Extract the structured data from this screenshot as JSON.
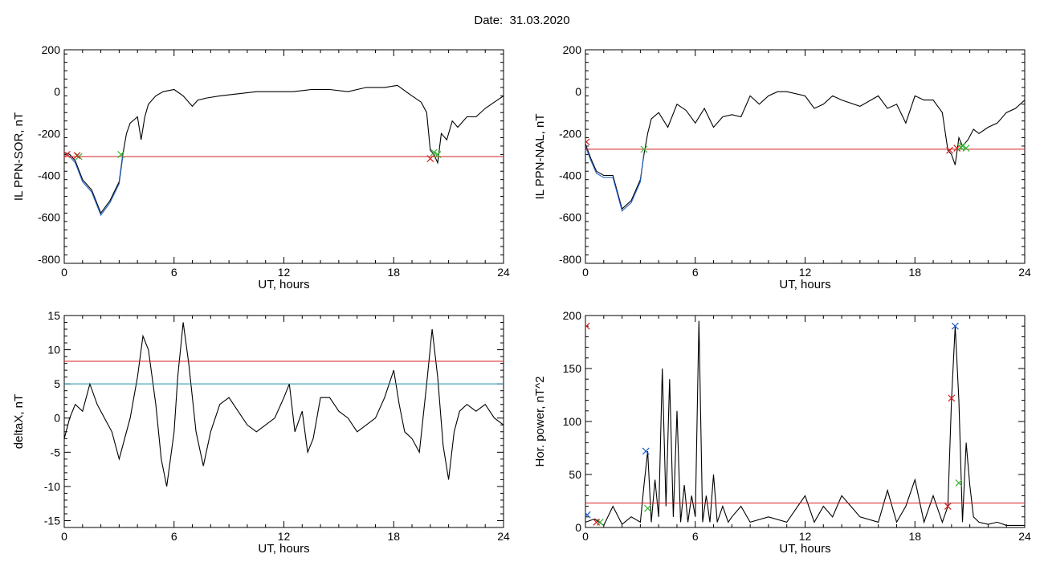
{
  "figure": {
    "title": "Date:  31.03.2020"
  },
  "chart_data": [
    {
      "type": "line",
      "ylabel": "IL PPN-SOR, nT",
      "xlabel": "UT, hours",
      "xlim": [
        0,
        24
      ],
      "ylim": [
        -820,
        200
      ],
      "xticks": [
        0,
        6,
        12,
        18,
        24
      ],
      "yticks": [
        -800,
        -600,
        -400,
        -200,
        0,
        200
      ],
      "threshold": -310,
      "series": [
        {
          "color": "#000000",
          "x": [
            0,
            0.3,
            0.6,
            1.0,
            1.5,
            2.0,
            2.5,
            3.0,
            3.2,
            3.4,
            3.6,
            4.0,
            4.2,
            4.4,
            4.6,
            5.0,
            5.4,
            6.0,
            6.5,
            7.0,
            7.3,
            7.8,
            8.5,
            9.5,
            10.5,
            11.5,
            12.5,
            13.5,
            14.5,
            15.5,
            16.5,
            17.5,
            18.2,
            19.0,
            19.5,
            19.8,
            20.0,
            20.2,
            20.4,
            20.6,
            20.9,
            21.2,
            21.5,
            22.0,
            22.5,
            23.0,
            23.5,
            24.0
          ],
          "y": [
            -290,
            -300,
            -330,
            -420,
            -470,
            -580,
            -520,
            -430,
            -300,
            -200,
            -150,
            -120,
            -230,
            -120,
            -60,
            -20,
            0,
            10,
            -20,
            -70,
            -40,
            -30,
            -20,
            -10,
            0,
            0,
            0,
            10,
            10,
            0,
            20,
            20,
            30,
            -20,
            -50,
            -100,
            -280,
            -300,
            -340,
            -200,
            -230,
            -140,
            -170,
            -120,
            -120,
            -80,
            -50,
            -20
          ]
        },
        {
          "color": "#1f5fc8",
          "x": [
            0,
            0.3,
            0.6,
            1.0,
            1.5,
            2.0,
            2.5,
            3.0,
            3.2
          ],
          "y": [
            -290,
            -310,
            -340,
            -430,
            -480,
            -590,
            -530,
            -440,
            -310
          ]
        }
      ],
      "markers": [
        {
          "x": 0.15,
          "y": -300,
          "color": "#d22020"
        },
        {
          "x": 0.8,
          "y": -310,
          "color": "#2fb830"
        },
        {
          "x": 0.7,
          "y": -305,
          "color": "#d22020"
        },
        {
          "x": 3.1,
          "y": -300,
          "color": "#2fb830"
        },
        {
          "x": 20.0,
          "y": -320,
          "color": "#d22020"
        },
        {
          "x": 20.2,
          "y": -290,
          "color": "#2fb830"
        },
        {
          "x": 20.4,
          "y": -300,
          "color": "#2fb830"
        }
      ]
    },
    {
      "type": "line",
      "ylabel": "IL PPN-NAL, nT",
      "xlabel": "UT, hours",
      "xlim": [
        0,
        24
      ],
      "ylim": [
        -820,
        200
      ],
      "xticks": [
        0,
        6,
        12,
        18,
        24
      ],
      "yticks": [
        -800,
        -600,
        -400,
        -200,
        0,
        200
      ],
      "threshold": -275,
      "series": [
        {
          "color": "#000000",
          "x": [
            0,
            0.3,
            0.6,
            1.0,
            1.5,
            2.0,
            2.5,
            3.0,
            3.2,
            3.4,
            3.6,
            4.0,
            4.5,
            5.0,
            5.5,
            6.0,
            6.5,
            7.0,
            7.5,
            8.0,
            8.5,
            9.0,
            9.5,
            10.0,
            10.5,
            11.0,
            12.0,
            12.5,
            13.0,
            13.5,
            14.0,
            15.0,
            16.0,
            16.5,
            17.0,
            17.5,
            18.0,
            18.5,
            19.0,
            19.5,
            19.8,
            20.0,
            20.2,
            20.4,
            20.6,
            20.9,
            21.2,
            21.5,
            22.0,
            22.5,
            23.0,
            23.5,
            24.0
          ],
          "y": [
            -250,
            -320,
            -380,
            -400,
            -400,
            -560,
            -520,
            -420,
            -300,
            -200,
            -130,
            -100,
            -170,
            -60,
            -90,
            -150,
            -80,
            -170,
            -120,
            -110,
            -120,
            -20,
            -60,
            -20,
            0,
            0,
            -20,
            -80,
            -60,
            -20,
            -40,
            -70,
            -20,
            -80,
            -60,
            -150,
            -20,
            -40,
            -40,
            -100,
            -280,
            -300,
            -350,
            -220,
            -260,
            -230,
            -180,
            -200,
            -170,
            -150,
            -100,
            -80,
            -40
          ]
        },
        {
          "color": "#1f5fc8",
          "x": [
            0,
            0.3,
            0.6,
            1.0,
            1.5,
            2.0,
            2.5,
            3.0,
            3.2
          ],
          "y": [
            -260,
            -330,
            -390,
            -410,
            -410,
            -570,
            -530,
            -430,
            -290
          ]
        }
      ],
      "markers": [
        {
          "x": 0.05,
          "y": -240,
          "color": "#d22020"
        },
        {
          "x": 3.2,
          "y": -275,
          "color": "#2fb830"
        },
        {
          "x": 19.9,
          "y": -280,
          "color": "#d22020"
        },
        {
          "x": 20.3,
          "y": -270,
          "color": "#d22020"
        },
        {
          "x": 20.5,
          "y": -265,
          "color": "#2fb830"
        },
        {
          "x": 20.6,
          "y": -260,
          "color": "#2fb830"
        },
        {
          "x": 20.8,
          "y": -270,
          "color": "#2fb830"
        }
      ]
    },
    {
      "type": "line",
      "ylabel": "deltaX, nT",
      "xlabel": "UT, hours",
      "xlim": [
        0,
        24
      ],
      "ylim": [
        -16,
        15
      ],
      "xticks": [
        0,
        6,
        12,
        18,
        24
      ],
      "yticks": [
        -15,
        -10,
        -5,
        0,
        5,
        10,
        15
      ],
      "threshold": 8.3,
      "threshold2": 5.0,
      "series": [
        {
          "color": "#000000",
          "x": [
            0,
            0.3,
            0.6,
            1.0,
            1.4,
            1.8,
            2.2,
            2.6,
            3.0,
            3.3,
            3.6,
            4.0,
            4.3,
            4.6,
            5.0,
            5.3,
            5.6,
            6.0,
            6.2,
            6.5,
            6.8,
            7.2,
            7.6,
            8.0,
            8.5,
            9.0,
            9.5,
            10.0,
            10.5,
            11.0,
            11.5,
            12.0,
            12.3,
            12.6,
            13.0,
            13.3,
            13.6,
            14.0,
            14.5,
            15.0,
            15.5,
            16.0,
            16.5,
            17.0,
            17.5,
            18.0,
            18.3,
            18.6,
            19.0,
            19.4,
            19.8,
            20.1,
            20.4,
            20.7,
            21.0,
            21.3,
            21.6,
            22.0,
            22.5,
            23.0,
            23.5,
            24.0
          ],
          "y": [
            -3,
            0,
            2,
            1,
            5,
            2,
            0,
            -2,
            -6,
            -3,
            0,
            6,
            12,
            10,
            2,
            -6,
            -10,
            -2,
            6,
            14,
            8,
            -2,
            -7,
            -2,
            2,
            3,
            1,
            -1,
            -2,
            -1,
            0,
            3,
            5,
            -2,
            1,
            -5,
            -3,
            3,
            3,
            1,
            0,
            -2,
            -1,
            0,
            3,
            7,
            2,
            -2,
            -3,
            -5,
            5,
            13,
            6,
            -4,
            -9,
            -2,
            1,
            2,
            1,
            2,
            0,
            -1
          ]
        }
      ]
    },
    {
      "type": "line",
      "ylabel": "Hor. power, nT^2",
      "xlabel": "UT, hours",
      "xlim": [
        0,
        24
      ],
      "ylim": [
        0,
        200
      ],
      "xticks": [
        0,
        6,
        12,
        18,
        24
      ],
      "yticks": [
        0,
        50,
        100,
        150,
        200
      ],
      "threshold": 23,
      "series": [
        {
          "color": "#000000",
          "x": [
            0,
            0.5,
            1.0,
            1.5,
            2.0,
            2.5,
            3.0,
            3.2,
            3.4,
            3.6,
            3.8,
            4.0,
            4.2,
            4.4,
            4.6,
            4.8,
            5.0,
            5.2,
            5.4,
            5.6,
            5.8,
            6.0,
            6.2,
            6.4,
            6.6,
            6.8,
            7.0,
            7.2,
            7.5,
            7.8,
            8.0,
            8.5,
            9.0,
            10.0,
            11.0,
            12.0,
            12.5,
            13.0,
            13.5,
            14.0,
            15.0,
            16.0,
            16.5,
            17.0,
            17.5,
            18.0,
            18.5,
            19.0,
            19.5,
            19.8,
            20.0,
            20.2,
            20.4,
            20.6,
            20.8,
            21.0,
            21.2,
            21.5,
            22.0,
            22.5,
            23.0,
            24.0
          ],
          "y": [
            5,
            8,
            2,
            20,
            3,
            10,
            5,
            40,
            72,
            5,
            45,
            10,
            150,
            20,
            140,
            10,
            110,
            5,
            40,
            5,
            30,
            10,
            195,
            5,
            30,
            5,
            50,
            5,
            20,
            5,
            10,
            20,
            5,
            10,
            5,
            30,
            5,
            20,
            10,
            30,
            10,
            5,
            35,
            5,
            20,
            45,
            5,
            30,
            5,
            20,
            120,
            190,
            120,
            5,
            80,
            40,
            10,
            5,
            3,
            5,
            2,
            2
          ]
        }
      ],
      "markers": [
        {
          "x": 0.05,
          "y": 190,
          "color": "#d22020"
        },
        {
          "x": 0.1,
          "y": 12,
          "color": "#1f5fc8"
        },
        {
          "x": 0.8,
          "y": 5,
          "color": "#2fb830"
        },
        {
          "x": 0.6,
          "y": 5,
          "color": "#d22020"
        },
        {
          "x": 3.3,
          "y": 72,
          "color": "#1f5fc8"
        },
        {
          "x": 3.4,
          "y": 18,
          "color": "#2fb830"
        },
        {
          "x": 19.8,
          "y": 20,
          "color": "#d22020"
        },
        {
          "x": 20.0,
          "y": 122,
          "color": "#d22020"
        },
        {
          "x": 20.2,
          "y": 190,
          "color": "#1f5fc8"
        },
        {
          "x": 20.4,
          "y": 42,
          "color": "#2fb830"
        }
      ]
    }
  ]
}
